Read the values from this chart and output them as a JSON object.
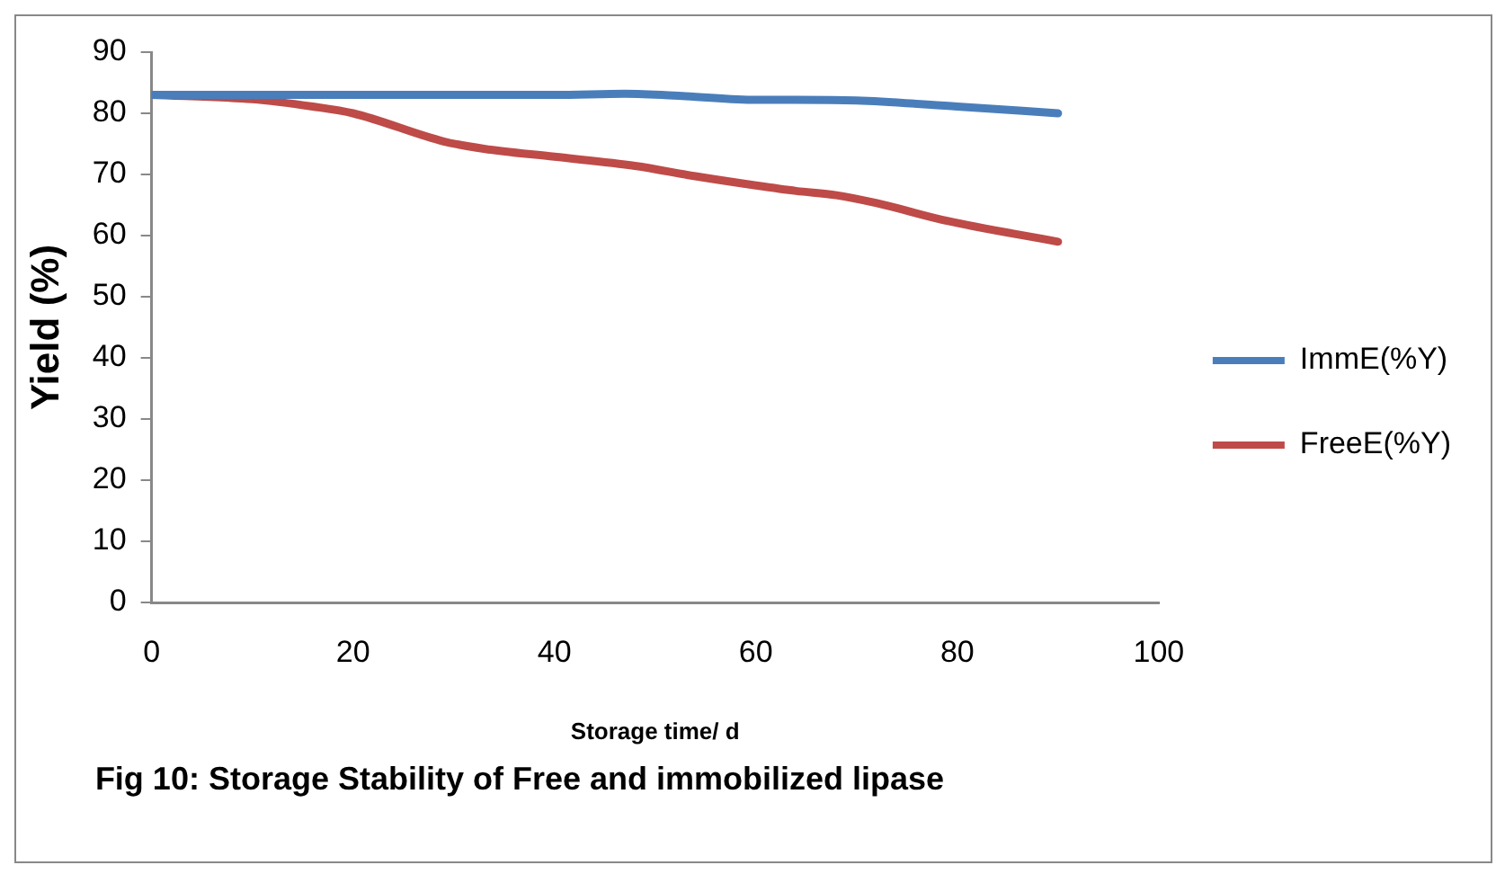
{
  "chart_data": {
    "type": "line",
    "xlabel": "Storage time/ d",
    "ylabel": "Yield (%)",
    "annotations": [
      "Fig 10: Storage Stability of Free and immobilized lipase"
    ],
    "xlim": [
      0,
      100
    ],
    "xticks": [
      0,
      20,
      40,
      60,
      80,
      100
    ],
    "ylim": [
      0,
      90
    ],
    "yticks": [
      0,
      10,
      20,
      30,
      40,
      50,
      60,
      70,
      80,
      90
    ],
    "grid": false,
    "legend": "right",
    "marker": "none",
    "series": [
      {
        "name": "ImmE(%Y)",
        "color": "#4a7ebb",
        "x": [
          0,
          20,
          40,
          47,
          53,
          60,
          64,
          70,
          80,
          90
        ],
        "values": [
          83,
          83,
          83,
          83.2,
          82.8,
          82.2,
          82.2,
          82.1,
          81.1,
          80
        ]
      },
      {
        "name": "FreeE(%Y)",
        "color": "#be4b48",
        "x": [
          0,
          10,
          16,
          20,
          29,
          33,
          40,
          48,
          54,
          60,
          64,
          68,
          72,
          79,
          90
        ],
        "values": [
          83,
          82.3,
          81.1,
          80,
          75.4,
          74.2,
          72.9,
          71.4,
          69.7,
          68.2,
          67.3,
          66.6,
          65.3,
          62.4,
          59
        ]
      }
    ]
  }
}
